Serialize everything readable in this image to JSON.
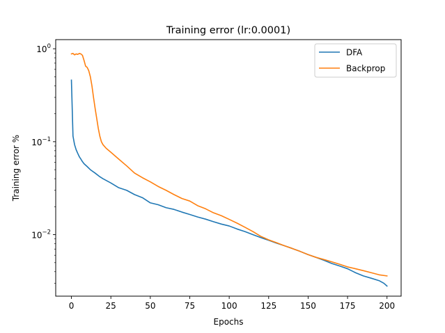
{
  "chart_data": {
    "type": "line",
    "title": "Training error (lr:0.0001)",
    "xlabel": "Epochs",
    "ylabel": "Training error %",
    "yscale": "log",
    "xlim": [
      -9.95,
      208.95
    ],
    "ylim": [
      0.00218,
      1.254
    ],
    "xticks": [
      0,
      25,
      50,
      75,
      100,
      125,
      150,
      175,
      200
    ],
    "xtick_labels": [
      "0",
      "25",
      "50",
      "75",
      "100",
      "125",
      "150",
      "175",
      "200"
    ],
    "yticks_major": [
      0.01,
      0.1,
      1
    ],
    "ytick_labels": [
      "10",
      "10",
      "10"
    ],
    "ytick_exponents": [
      "−2",
      "−1",
      "0"
    ],
    "yticks_minor": [
      0.003,
      0.004,
      0.005,
      0.006,
      0.007,
      0.008,
      0.009,
      0.02,
      0.03,
      0.04,
      0.05,
      0.06,
      0.07,
      0.08,
      0.09,
      0.2,
      0.3,
      0.4,
      0.5,
      0.6,
      0.7,
      0.8,
      0.9
    ],
    "grid": false,
    "legend_position": "top-right",
    "series": [
      {
        "name": "DFA",
        "color": "#1f77b4",
        "points": [
          [
            0,
            0.46
          ],
          [
            1,
            0.115
          ],
          [
            2,
            0.093
          ],
          [
            3,
            0.082
          ],
          [
            4,
            0.075
          ],
          [
            5,
            0.069
          ],
          [
            6,
            0.065
          ],
          [
            7,
            0.061
          ],
          [
            8,
            0.058
          ],
          [
            10,
            0.054
          ],
          [
            12,
            0.05
          ],
          [
            15,
            0.046
          ],
          [
            18,
            0.042
          ],
          [
            20,
            0.04
          ],
          [
            25,
            0.036
          ],
          [
            30,
            0.032
          ],
          [
            35,
            0.03
          ],
          [
            40,
            0.027
          ],
          [
            45,
            0.025
          ],
          [
            50,
            0.022
          ],
          [
            55,
            0.021
          ],
          [
            60,
            0.0195
          ],
          [
            65,
            0.0187
          ],
          [
            70,
            0.0175
          ],
          [
            75,
            0.0165
          ],
          [
            80,
            0.0155
          ],
          [
            85,
            0.0147
          ],
          [
            90,
            0.0138
          ],
          [
            95,
            0.013
          ],
          [
            100,
            0.0124
          ],
          [
            105,
            0.0115
          ],
          [
            110,
            0.0108
          ],
          [
            115,
            0.01
          ],
          [
            120,
            0.0093
          ],
          [
            125,
            0.0087
          ],
          [
            130,
            0.0081
          ],
          [
            135,
            0.0076
          ],
          [
            140,
            0.0071
          ],
          [
            145,
            0.0066
          ],
          [
            150,
            0.0061
          ],
          [
            155,
            0.0057
          ],
          [
            160,
            0.0053
          ],
          [
            165,
            0.0049
          ],
          [
            170,
            0.0046
          ],
          [
            175,
            0.0043
          ],
          [
            180,
            0.0039
          ],
          [
            185,
            0.0036
          ],
          [
            190,
            0.0034
          ],
          [
            195,
            0.0032
          ],
          [
            198,
            0.003
          ],
          [
            200,
            0.0028
          ]
        ]
      },
      {
        "name": "Backprop",
        "color": "#ff7f0e",
        "points": [
          [
            0,
            0.88
          ],
          [
            1,
            0.89
          ],
          [
            2,
            0.86
          ],
          [
            3,
            0.88
          ],
          [
            4,
            0.87
          ],
          [
            5,
            0.89
          ],
          [
            6,
            0.88
          ],
          [
            7,
            0.85
          ],
          [
            8,
            0.75
          ],
          [
            9,
            0.65
          ],
          [
            10,
            0.63
          ],
          [
            11,
            0.58
          ],
          [
            12,
            0.5
          ],
          [
            13,
            0.4
          ],
          [
            14,
            0.3
          ],
          [
            15,
            0.23
          ],
          [
            16,
            0.18
          ],
          [
            17,
            0.14
          ],
          [
            18,
            0.115
          ],
          [
            19,
            0.1
          ],
          [
            20,
            0.093
          ],
          [
            22,
            0.085
          ],
          [
            25,
            0.077
          ],
          [
            30,
            0.065
          ],
          [
            35,
            0.055
          ],
          [
            40,
            0.046
          ],
          [
            45,
            0.041
          ],
          [
            50,
            0.037
          ],
          [
            55,
            0.033
          ],
          [
            60,
            0.03
          ],
          [
            65,
            0.027
          ],
          [
            70,
            0.0245
          ],
          [
            75,
            0.023
          ],
          [
            80,
            0.0205
          ],
          [
            85,
            0.019
          ],
          [
            90,
            0.0172
          ],
          [
            95,
            0.016
          ],
          [
            100,
            0.0146
          ],
          [
            105,
            0.0133
          ],
          [
            110,
            0.012
          ],
          [
            115,
            0.0108
          ],
          [
            120,
            0.0096
          ],
          [
            125,
            0.0088
          ],
          [
            130,
            0.0082
          ],
          [
            135,
            0.0076
          ],
          [
            140,
            0.0071
          ],
          [
            145,
            0.0066
          ],
          [
            150,
            0.0061
          ],
          [
            155,
            0.0057
          ],
          [
            160,
            0.0054
          ],
          [
            165,
            0.0051
          ],
          [
            170,
            0.0048
          ],
          [
            175,
            0.0045
          ],
          [
            180,
            0.0043
          ],
          [
            185,
            0.0041
          ],
          [
            190,
            0.0039
          ],
          [
            195,
            0.0037
          ],
          [
            200,
            0.0036
          ]
        ]
      }
    ]
  }
}
